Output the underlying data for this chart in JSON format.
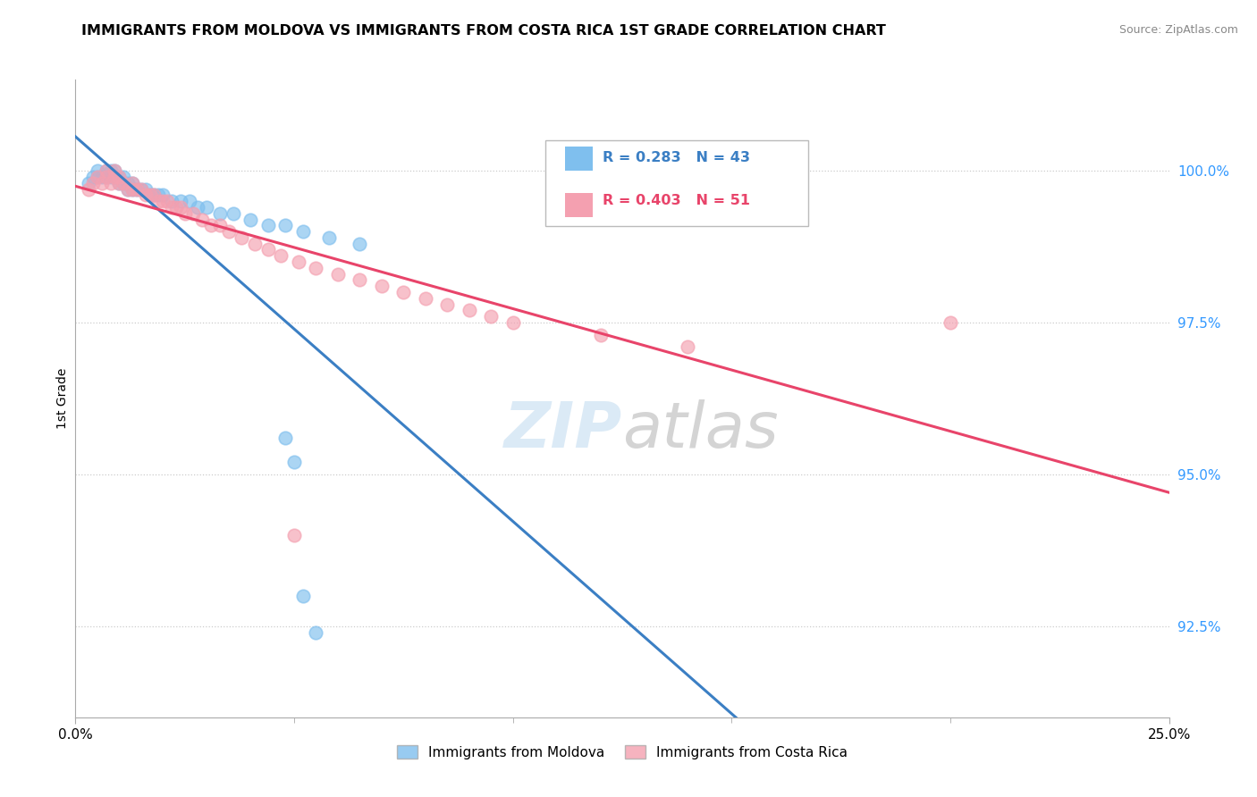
{
  "title": "IMMIGRANTS FROM MOLDOVA VS IMMIGRANTS FROM COSTA RICA 1ST GRADE CORRELATION CHART",
  "source": "Source: ZipAtlas.com",
  "ylabel": "1st Grade",
  "ytick_labels": [
    "92.5%",
    "95.0%",
    "97.5%",
    "100.0%"
  ],
  "ytick_values": [
    0.925,
    0.95,
    0.975,
    1.0
  ],
  "xmin": 0.0,
  "xmax": 0.25,
  "ymin": 0.91,
  "ymax": 1.015,
  "moldova_color": "#7fbfee",
  "costarica_color": "#f4a0b0",
  "moldova_line_color": "#3b7fc4",
  "costarica_line_color": "#e8446a",
  "R_moldova": 0.283,
  "N_moldova": 43,
  "R_costarica": 0.403,
  "N_costarica": 51,
  "legend_moldova": "Immigrants from Moldova",
  "legend_costarica": "Immigrants from Costa Rica",
  "moldova_x": [
    0.003,
    0.004,
    0.005,
    0.005,
    0.006,
    0.007,
    0.007,
    0.008,
    0.008,
    0.009,
    0.009,
    0.01,
    0.01,
    0.011,
    0.011,
    0.012,
    0.012,
    0.013,
    0.013,
    0.014,
    0.015,
    0.016,
    0.017,
    0.018,
    0.019,
    0.02,
    0.022,
    0.024,
    0.026,
    0.028,
    0.03,
    0.033,
    0.036,
    0.04,
    0.044,
    0.048,
    0.052,
    0.058,
    0.065,
    0.048,
    0.05,
    0.052,
    0.055
  ],
  "moldova_y": [
    0.998,
    0.999,
    0.999,
    1.0,
    0.999,
    0.999,
    1.0,
    0.999,
    1.0,
    0.999,
    1.0,
    0.998,
    0.999,
    0.998,
    0.999,
    0.998,
    0.997,
    0.997,
    0.998,
    0.997,
    0.997,
    0.997,
    0.996,
    0.996,
    0.996,
    0.996,
    0.995,
    0.995,
    0.995,
    0.994,
    0.994,
    0.993,
    0.993,
    0.992,
    0.991,
    0.991,
    0.99,
    0.989,
    0.988,
    0.956,
    0.952,
    0.93,
    0.924
  ],
  "costarica_x": [
    0.003,
    0.004,
    0.005,
    0.006,
    0.007,
    0.007,
    0.008,
    0.009,
    0.009,
    0.01,
    0.01,
    0.011,
    0.012,
    0.013,
    0.013,
    0.014,
    0.015,
    0.016,
    0.017,
    0.018,
    0.019,
    0.02,
    0.021,
    0.022,
    0.023,
    0.024,
    0.025,
    0.027,
    0.029,
    0.031,
    0.033,
    0.035,
    0.038,
    0.041,
    0.044,
    0.047,
    0.051,
    0.055,
    0.06,
    0.065,
    0.07,
    0.075,
    0.08,
    0.085,
    0.09,
    0.095,
    0.1,
    0.12,
    0.14,
    0.05,
    0.2
  ],
  "costarica_y": [
    0.997,
    0.998,
    0.999,
    0.998,
    0.999,
    1.0,
    0.998,
    0.999,
    1.0,
    0.998,
    0.999,
    0.998,
    0.997,
    0.997,
    0.998,
    0.997,
    0.997,
    0.996,
    0.996,
    0.996,
    0.995,
    0.995,
    0.995,
    0.994,
    0.994,
    0.994,
    0.993,
    0.993,
    0.992,
    0.991,
    0.991,
    0.99,
    0.989,
    0.988,
    0.987,
    0.986,
    0.985,
    0.984,
    0.983,
    0.982,
    0.981,
    0.98,
    0.979,
    0.978,
    0.977,
    0.976,
    0.975,
    0.973,
    0.971,
    0.94,
    0.975
  ]
}
